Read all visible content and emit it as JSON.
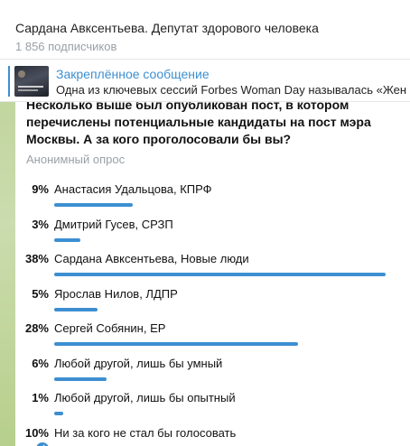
{
  "channel": {
    "title": "Сардана Авксентьева. Депутат здорового человека",
    "subscribers": "1 856 подписчиков"
  },
  "pinned": {
    "title": "Закреплённое сообщение",
    "text": "Одна из ключевых сессий Forbes Woman Day называлась «Жен"
  },
  "poll": {
    "question": "Несколько выше был опубликован пост, в котором перечислены потенциальные кандидаты на пост мэра Москвы. А за кого проголосовали бы вы?",
    "type": "Анонимный опрос",
    "accent_color": "#3d8fd1",
    "options": [
      {
        "percent": "9%",
        "value": 9,
        "label": "Анастасия Удальцова, КПРФ"
      },
      {
        "percent": "3%",
        "value": 3,
        "label": "Дмитрий Гусев, СРЗП"
      },
      {
        "percent": "38%",
        "value": 38,
        "label": "Сардана Авксентьева, Новые люди"
      },
      {
        "percent": "5%",
        "value": 5,
        "label": "Ярослав Нилов, ЛДПР"
      },
      {
        "percent": "28%",
        "value": 28,
        "label": "Сергей Собянин, ЕР"
      },
      {
        "percent": "6%",
        "value": 6,
        "label": "Любой другой, лишь бы умный"
      },
      {
        "percent": "1%",
        "value": 1,
        "label": "Любой другой, лишь бы опытный"
      },
      {
        "percent": "10%",
        "value": 10,
        "label": "Ни за кого не стал бы голосовать",
        "chosen": true
      }
    ]
  }
}
